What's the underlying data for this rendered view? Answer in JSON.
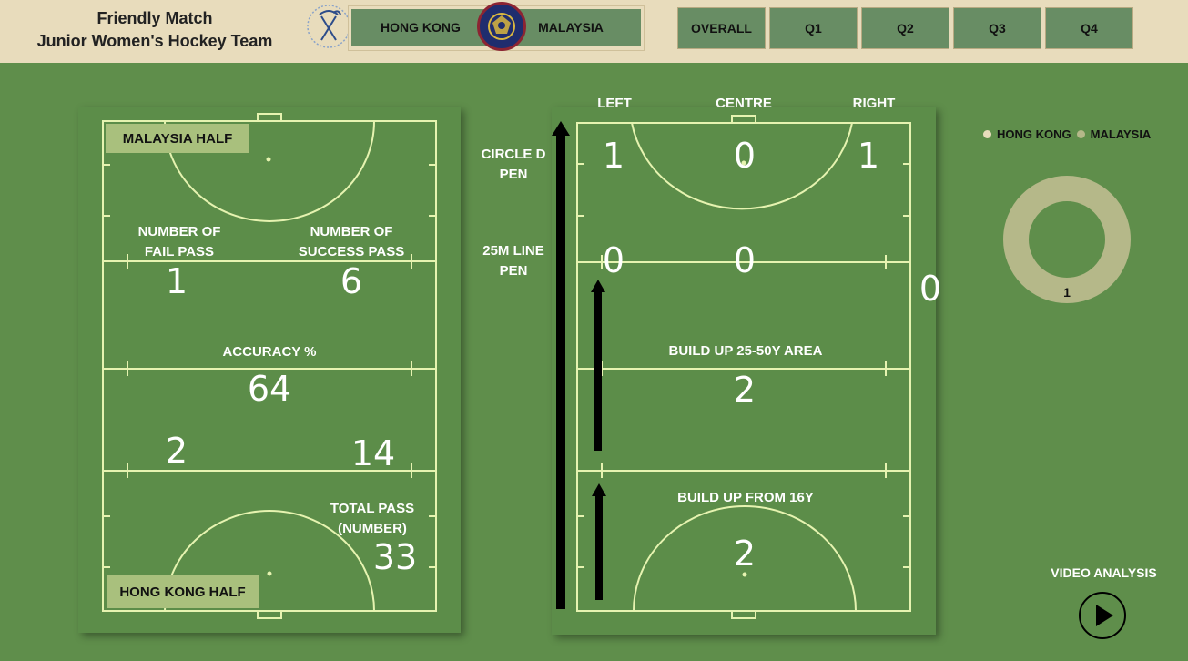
{
  "header": {
    "title_line1": "Friendly Match",
    "title_line2": "Junior Women's Hockey Team",
    "team_left": "HONG KONG",
    "team_right": "MALAYSIA",
    "quarters": [
      "OVERALL",
      "Q1",
      "Q2",
      "Q3",
      "Q4"
    ]
  },
  "left_panel": {
    "malaysia_half": "MALAYSIA HALF",
    "hongkong_half": "HONG KONG HALF",
    "fail_label": "NUMBER OF FAIL PASS",
    "success_label": "NUMBER OF SUCCESS PASS",
    "fail_value": "1",
    "success_value": "6",
    "accuracy_label": "ACCURACY %",
    "accuracy_value": "64",
    "hk_fail_value": "2",
    "hk_success_value": "14",
    "total_label": "TOTAL PASS (NUMBER)",
    "total_value": "33"
  },
  "right_panel": {
    "col_left": "LEFT",
    "col_centre": "CENTRE",
    "col_right": "RIGHT",
    "circle_label": "CIRCLE D PEN",
    "line25_label": "25M LINE PEN",
    "circle_left": "1",
    "circle_centre": "0",
    "circle_right": "1",
    "line25_left": "0",
    "line25_centre": "0",
    "line25_right": "0",
    "buildup_25_50_label": "BUILD UP 25-50Y AREA",
    "buildup_25_50_value": "2",
    "buildup_16_label": "BUILD UP FROM 16Y",
    "buildup_16_value": "2"
  },
  "donut": {
    "legend": [
      "HONG KONG",
      "MALAYSIA"
    ],
    "colors": {
      "hong_kong": "#e8dcbc",
      "malaysia": "#b5b889"
    },
    "value_label": "1"
  },
  "video": {
    "label": "VIDEO ANALYSIS"
  }
}
